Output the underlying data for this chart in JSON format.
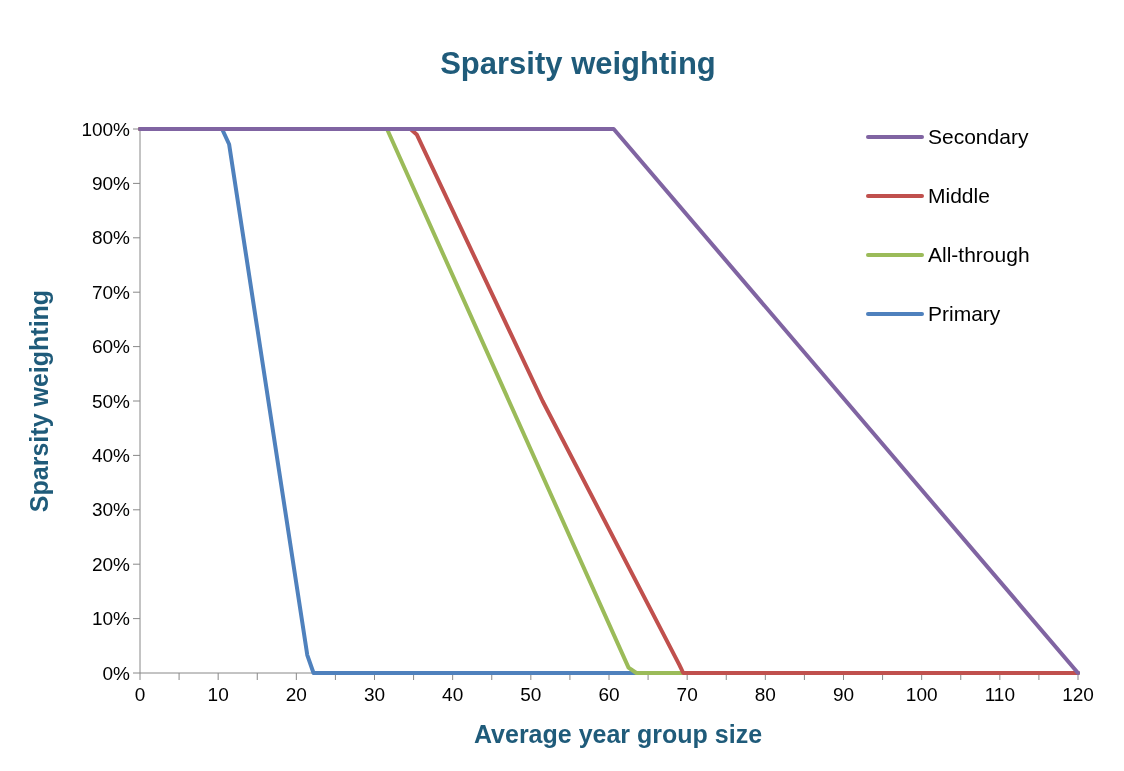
{
  "chart_data": {
    "type": "line",
    "title": "Sparsity weighting",
    "xlabel": "Average year group size",
    "ylabel": "Sparsity weighting",
    "xlim": [
      0,
      120
    ],
    "ylim": [
      0,
      100
    ],
    "xticks": [
      0,
      {
        "value": 5,
        "label": null
      },
      10,
      {
        "value": 15,
        "label": null
      },
      20,
      {
        "value": 25,
        "label": null
      },
      30,
      {
        "value": 35,
        "label": null
      },
      40,
      {
        "value": 45,
        "label": null
      },
      50,
      {
        "value": 55,
        "label": null
      },
      60,
      {
        "value": 65,
        "label": null
      },
      70,
      {
        "value": 75,
        "label": null
      },
      80,
      {
        "value": 85,
        "label": null
      },
      90,
      {
        "value": 95,
        "label": null
      },
      100,
      {
        "value": 105,
        "label": null
      },
      110,
      {
        "value": 115,
        "label": null
      },
      120
    ],
    "yticks": [
      {
        "value": 0,
        "label": "0%"
      },
      {
        "value": 10,
        "label": "10%"
      },
      {
        "value": 20,
        "label": "20%"
      },
      {
        "value": 30,
        "label": "30%"
      },
      {
        "value": 40,
        "label": "40%"
      },
      {
        "value": 50,
        "label": "50%"
      },
      {
        "value": 60,
        "label": "60%"
      },
      {
        "value": 70,
        "label": "70%"
      },
      {
        "value": 80,
        "label": "80%"
      },
      {
        "value": 90,
        "label": "90%"
      },
      {
        "value": 100,
        "label": "100%"
      }
    ],
    "grid": false,
    "legend": "top right",
    "marker": "none",
    "line_style": "solid",
    "series": [
      {
        "name": "Secondary",
        "color": "#8064a2",
        "x": [
          0,
          60.6,
          120
        ],
        "values": [
          100,
          100,
          0
        ]
      },
      {
        "name": "Middle",
        "color": "#c0504d",
        "x": [
          0,
          34.6,
          35.4,
          51.5,
          69,
          69.5,
          120
        ],
        "values": [
          100,
          100,
          99,
          50,
          1.5,
          0,
          0
        ]
      },
      {
        "name": "All-through",
        "color": "#9bbb59",
        "x": [
          0,
          31.6,
          62.5,
          63.5,
          120
        ],
        "values": [
          100,
          100,
          1,
          0,
          0
        ]
      },
      {
        "name": "Primary",
        "color": "#4f81bd",
        "x": [
          0,
          10.5,
          11.4,
          21.4,
          22.2,
          120
        ],
        "values": [
          100,
          100,
          97.2,
          3.3,
          0,
          0
        ]
      }
    ]
  }
}
